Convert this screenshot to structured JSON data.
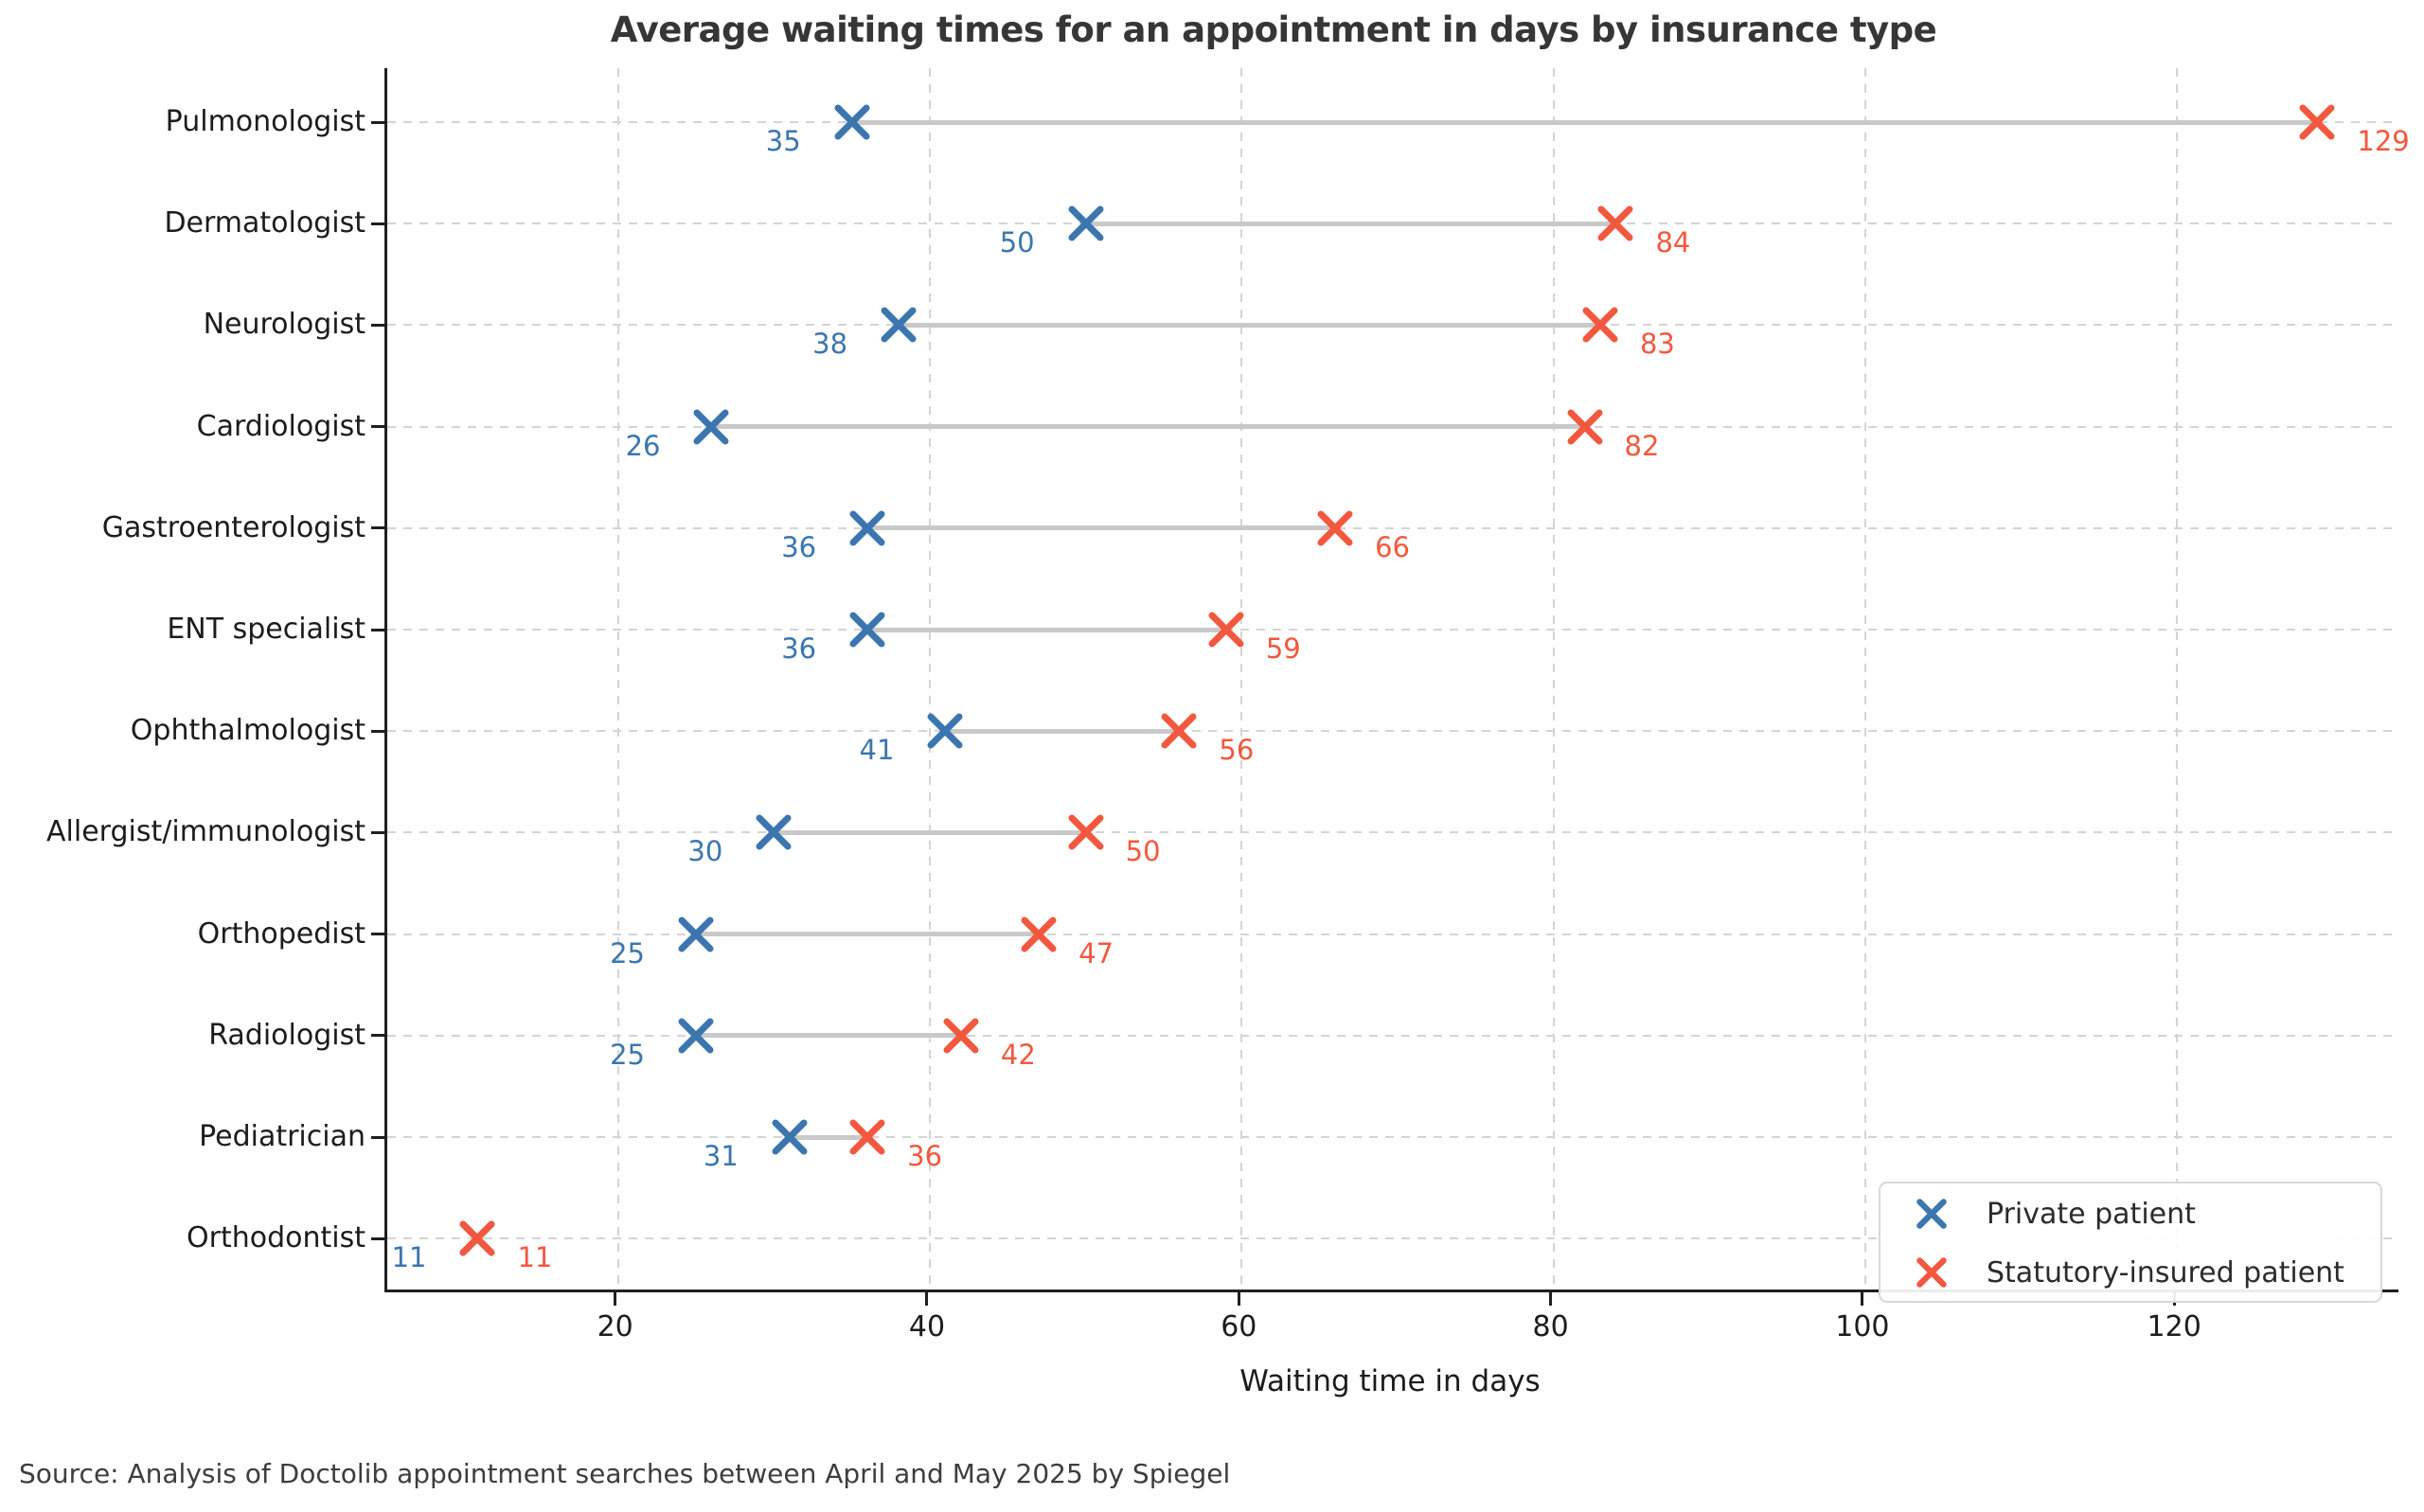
{
  "title": "Average waiting times for an appointment in days by insurance type",
  "source_note": "Source: Analysis of Doctolib appointment searches between April and May 2025 by Spiegel",
  "axes": {
    "xlabel": "Waiting time in days",
    "xticks": [
      "20",
      "40",
      "60",
      "80",
      "100",
      "120"
    ]
  },
  "legend": {
    "items": [
      {
        "label": "Private patient",
        "color": "#3b76af"
      },
      {
        "label": "Statutory-insured patient",
        "color": "#f2583e"
      }
    ]
  },
  "colors": {
    "private": "#3b76af",
    "statutory": "#f2583e",
    "grid": "#d4d4d4",
    "connector": "#c9c9c9",
    "spine": "#1f1f1f",
    "tick_text": "#1c1c1c",
    "title_text": "#363636"
  },
  "chart_data": {
    "type": "scatter",
    "subtype": "dumbbell",
    "title": "Average waiting times for an appointment in days by insurance type",
    "xlabel": "Waiting time in days",
    "categories": [
      "Pulmonologist",
      "Dermatologist",
      "Neurologist",
      "Cardiologist",
      "Gastroenterologist",
      "ENT specialist",
      "Ophthalmologist",
      "Allergist/immunologist",
      "Orthopedist",
      "Radiologist",
      "Pediatrician",
      "Orthodontist"
    ],
    "series": [
      {
        "name": "Private patient",
        "color": "#3b76af",
        "values": [
          35,
          50,
          38,
          26,
          36,
          36,
          41,
          30,
          25,
          25,
          31,
          11
        ]
      },
      {
        "name": "Statutory-insured patient",
        "color": "#f2583e",
        "values": [
          129,
          84,
          83,
          82,
          66,
          59,
          56,
          50,
          47,
          42,
          36,
          11
        ]
      }
    ],
    "xticks": [
      20,
      40,
      60,
      80,
      100,
      120
    ],
    "xlim": [
      5.2,
      134.2
    ],
    "grid": true,
    "legend_position": "lower right",
    "marker": "x",
    "source": "Source: Analysis of Doctolib appointment searches between April and May 2025 by Spiegel"
  }
}
